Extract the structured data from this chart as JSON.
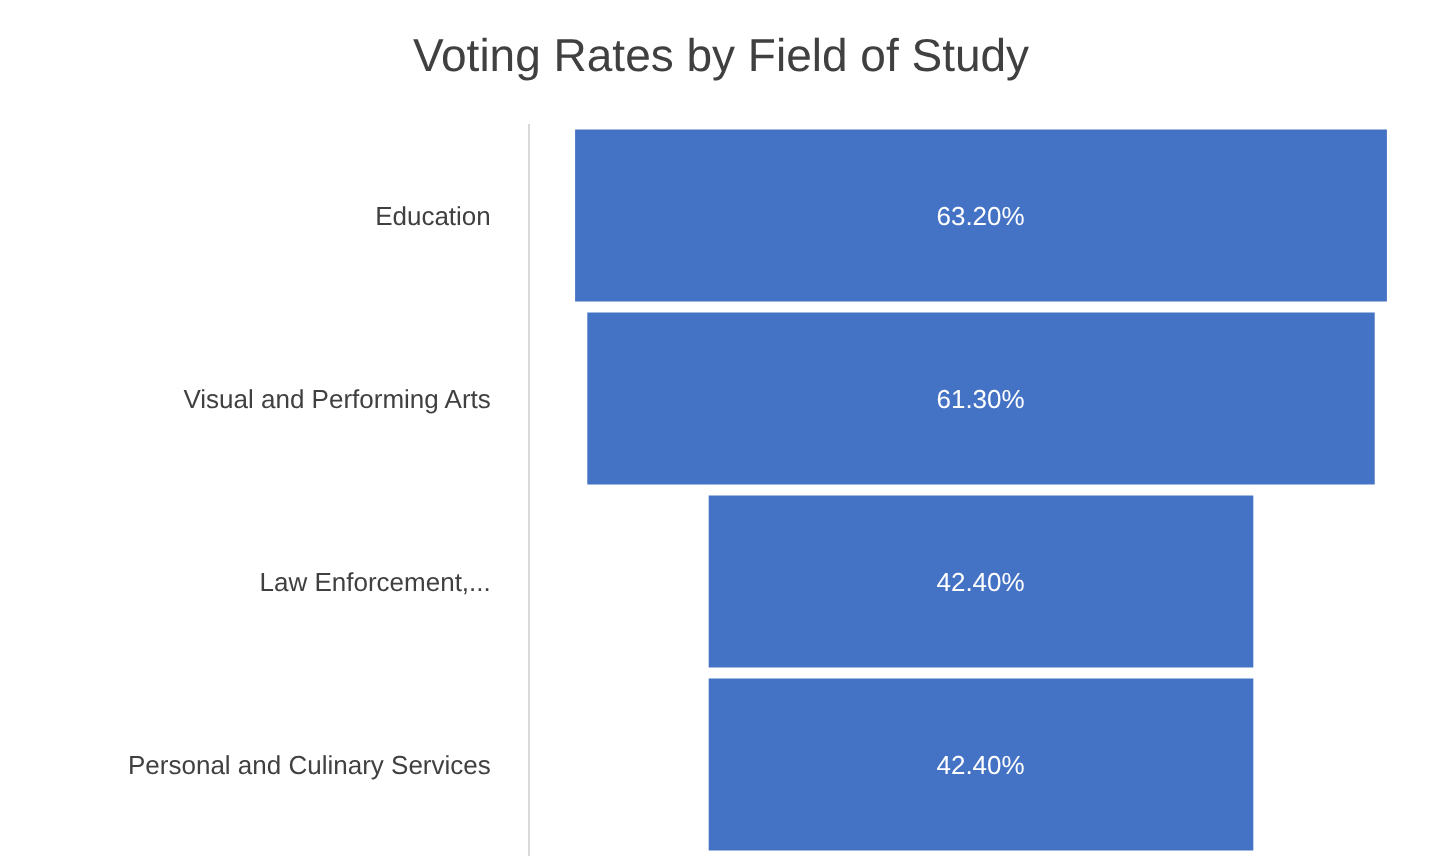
{
  "chart_data": {
    "type": "other",
    "title": "Voting Rates by Field of Study",
    "categories": [
      "Education",
      "Visual and Performing Arts",
      "Law Enforcement,...",
      "Personal and Culinary Services"
    ],
    "values": [
      63.2,
      61.3,
      42.4,
      42.4
    ],
    "value_labels": [
      "63.20%",
      "61.30%",
      "42.40%",
      "42.40%"
    ],
    "color": "#4472c4"
  }
}
